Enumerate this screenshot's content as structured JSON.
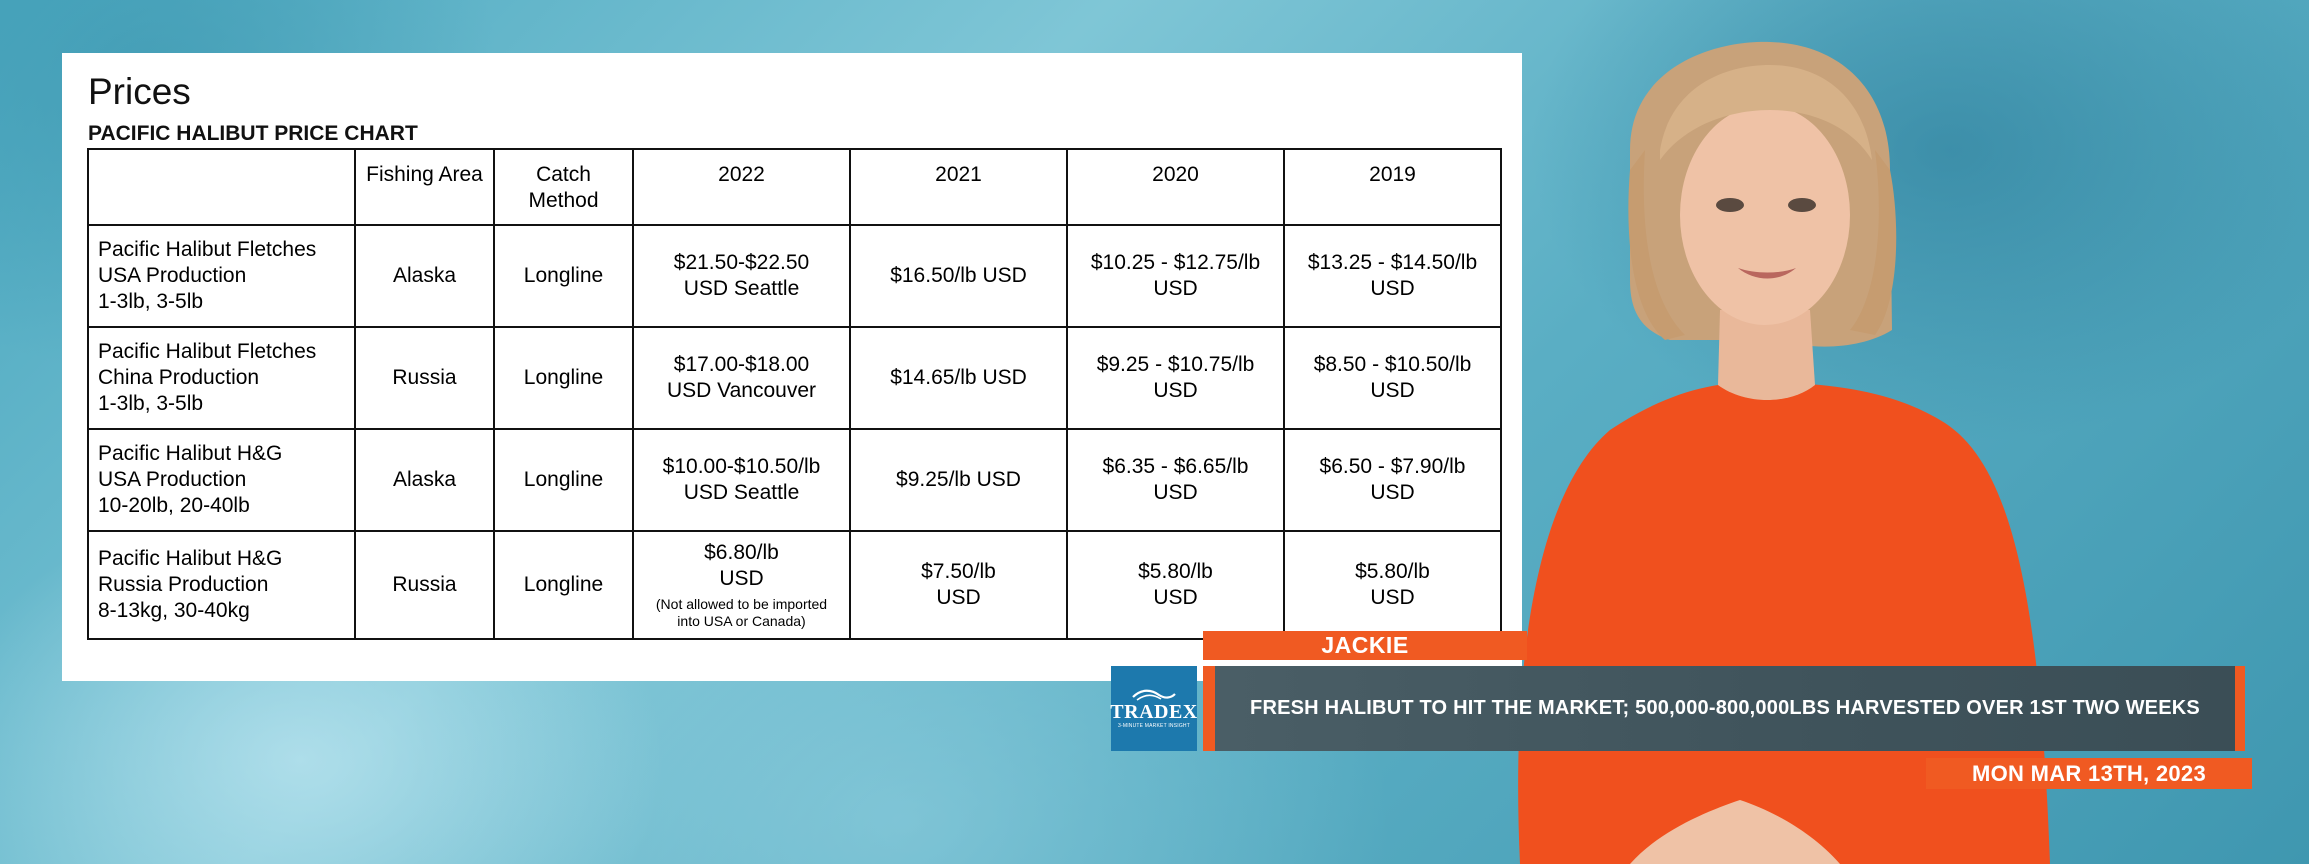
{
  "chart": {
    "heading": "Prices",
    "subheading": "PACIFIC HALIBUT PRICE CHART",
    "columns": [
      "",
      "Fishing Area",
      "Catch Method",
      "2022",
      "2021",
      "2020",
      "2019"
    ],
    "rows": [
      {
        "product": [
          "Pacific Halibut Fletches",
          "USA Production",
          "1-3lb, 3-5lb"
        ],
        "area": "Alaska",
        "method": "Longline",
        "p2022": [
          "$21.50-$22.50",
          "USD Seattle"
        ],
        "p2021": [
          "$16.50/lb USD"
        ],
        "p2020": [
          "$10.25 - $12.75/lb",
          "USD"
        ],
        "p2019": [
          "$13.25 - $14.50/lb",
          "USD"
        ]
      },
      {
        "product": [
          "Pacific Halibut Fletches",
          "China Production",
          "1-3lb, 3-5lb"
        ],
        "area": "Russia",
        "method": "Longline",
        "p2022": [
          "$17.00-$18.00",
          "USD Vancouver"
        ],
        "p2021": [
          "$14.65/lb USD"
        ],
        "p2020": [
          "$9.25 - $10.75/lb",
          "USD"
        ],
        "p2019": [
          "$8.50 - $10.50/lb",
          "USD"
        ]
      },
      {
        "product": [
          "Pacific Halibut H&G",
          "USA Production",
          "10-20lb, 20-40lb"
        ],
        "area": "Alaska",
        "method": "Longline",
        "p2022": [
          "$10.00-$10.50/lb",
          "USD Seattle"
        ],
        "p2021": [
          "$9.25/lb USD"
        ],
        "p2020": [
          "$6.35 - $6.65/lb",
          "USD"
        ],
        "p2019": [
          "$6.50 - $7.90/lb",
          "USD"
        ]
      },
      {
        "product": [
          "Pacific Halibut H&G",
          "Russia Production",
          "8-13kg, 30-40kg"
        ],
        "area": "Russia",
        "method": "Longline",
        "p2022": [
          "$6.80/lb",
          "USD"
        ],
        "p2022_note": [
          "(Not allowed to be imported",
          "into USA or Canada)"
        ],
        "p2021": [
          "$7.50/lb",
          "USD"
        ],
        "p2020": [
          "$5.80/lb",
          "USD"
        ],
        "p2019": [
          "$5.80/lb",
          "USD"
        ]
      }
    ]
  },
  "lower_third": {
    "name": "JACKIE",
    "logo_wordmark": "TRADEX",
    "logo_tagline": "3-MINUTE MARKET INSIGHT",
    "headline": "FRESH HALIBUT TO HIT THE MARKET; 500,000-800,000LBS HARVESTED OVER 1ST TWO WEEKS",
    "date": "MON MAR 13TH, 2023"
  },
  "colors": {
    "accent": "#f05a22",
    "headline_bg": "#3f535b",
    "logo_bg": "#1d79ad",
    "sweater": "#f0501e"
  }
}
